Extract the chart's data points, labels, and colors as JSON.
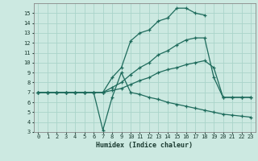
{
  "xlabel": "Humidex (Indice chaleur)",
  "xlim": [
    -0.5,
    23.5
  ],
  "ylim": [
    3,
    16
  ],
  "xticks": [
    0,
    1,
    2,
    3,
    4,
    5,
    6,
    7,
    8,
    9,
    10,
    11,
    12,
    13,
    14,
    15,
    16,
    17,
    18,
    19,
    20,
    21,
    22,
    23
  ],
  "yticks": [
    3,
    4,
    5,
    6,
    7,
    8,
    9,
    10,
    11,
    12,
    13,
    14,
    15
  ],
  "bg_color": "#cce9e1",
  "grid_color": "#aad4ca",
  "line_color": "#1e6b5c",
  "lines": [
    {
      "x": [
        0,
        1,
        2,
        3,
        4,
        5,
        6,
        7,
        8,
        9,
        10,
        11,
        12,
        13,
        14,
        15,
        16,
        17,
        18
      ],
      "y": [
        7,
        7,
        7,
        7,
        7,
        7,
        7,
        7,
        8.5,
        9.5,
        12.2,
        13.0,
        13.3,
        14.2,
        14.5,
        15.5,
        15.5,
        15.0,
        14.8
      ]
    },
    {
      "x": [
        0,
        1,
        2,
        3,
        4,
        5,
        6,
        7,
        8,
        9,
        10,
        11,
        12,
        13,
        14,
        15,
        16,
        17,
        18,
        19,
        20,
        21,
        22,
        23
      ],
      "y": [
        7,
        7,
        7,
        7,
        7,
        7,
        7,
        7,
        7.2,
        7.4,
        7.8,
        8.2,
        8.5,
        9.0,
        9.3,
        9.5,
        9.8,
        10.0,
        10.2,
        9.5,
        6.5,
        6.5,
        6.5,
        6.5
      ]
    },
    {
      "x": [
        0,
        1,
        2,
        3,
        4,
        5,
        6,
        7,
        8,
        9,
        10,
        11,
        12,
        13,
        14,
        15,
        16,
        17,
        18,
        19,
        20,
        21,
        22,
        23
      ],
      "y": [
        7,
        7,
        7,
        7,
        7,
        7,
        7,
        3.2,
        6.5,
        9.0,
        7.0,
        6.8,
        6.5,
        6.3,
        6.0,
        5.8,
        5.6,
        5.4,
        5.2,
        5.0,
        4.8,
        4.7,
        4.6,
        4.5
      ]
    },
    {
      "x": [
        0,
        1,
        2,
        3,
        4,
        5,
        6,
        7,
        8,
        9,
        10,
        11,
        12,
        13,
        14,
        15,
        16,
        17,
        18,
        19,
        20,
        21,
        22,
        23
      ],
      "y": [
        7,
        7,
        7,
        7,
        7,
        7,
        7,
        7,
        7.5,
        8.0,
        8.8,
        9.5,
        10.0,
        10.8,
        11.2,
        11.8,
        12.3,
        12.5,
        12.5,
        8.5,
        6.5,
        6.5,
        6.5,
        6.5
      ]
    }
  ]
}
